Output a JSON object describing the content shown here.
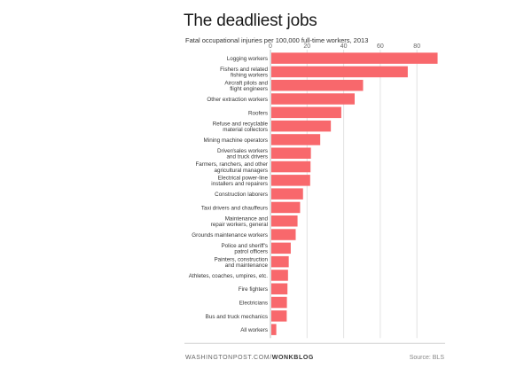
{
  "chart_data": {
    "type": "bar",
    "orientation": "horizontal",
    "title": "The deadliest jobs",
    "subtitle": "Fatal occupational injuries per 100,000 full-time workers, 2013",
    "categories": [
      [
        "Logging workers"
      ],
      [
        "Fishers and related",
        "fishing workers"
      ],
      [
        "Aircraft pilots and",
        "flight engineers"
      ],
      [
        "Other extraction workers"
      ],
      [
        "Roofers"
      ],
      [
        "Refuse and recyclable",
        "material collectors"
      ],
      [
        "Mining machine operators"
      ],
      [
        "Driver/sales workers",
        "and truck drivers"
      ],
      [
        "Farmers, ranchers, and other",
        "agricultural managers"
      ],
      [
        "Electrical power-line",
        "installers and repairers"
      ],
      [
        "Construction laborers"
      ],
      [
        "Taxi drivers and chauffeurs"
      ],
      [
        "Maintenance and",
        "repair workers, general"
      ],
      [
        "Grounds maintenance workers"
      ],
      [
        "Police and sheriff's",
        "patrol officers"
      ],
      [
        "Painters, construction",
        "and maintenance"
      ],
      [
        "Athletes, coaches, umpires, etc."
      ],
      [
        "Fire fighters"
      ],
      [
        "Electricians"
      ],
      [
        "Bus and truck mechanics"
      ],
      [
        "All workers"
      ]
    ],
    "values": [
      91.3,
      75.0,
      50.6,
      46.0,
      38.7,
      33.0,
      27.2,
      22.1,
      21.9,
      21.7,
      17.8,
      16.2,
      14.8,
      13.8,
      11.1,
      10.0,
      9.6,
      9.3,
      9.0,
      8.9,
      3.2
    ],
    "xlim": [
      0,
      93
    ],
    "xticks": [
      0,
      20,
      40,
      60,
      80
    ],
    "grid": true,
    "bar_color": "#f8686c"
  },
  "footer": {
    "source_prefix": "WASHINGTONPOST.COM/",
    "source_brand": "WONKBLOG",
    "credit": "Source: BLS"
  }
}
